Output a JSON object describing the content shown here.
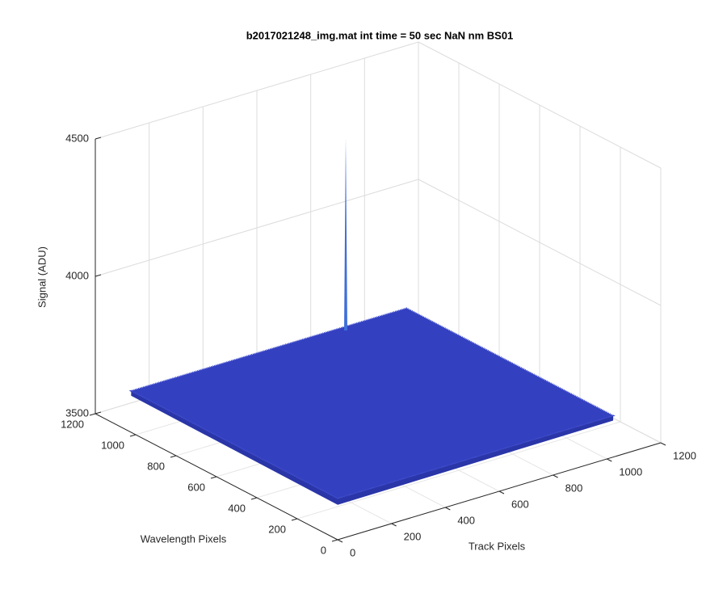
{
  "chart_data": {
    "type": "surface",
    "title": "b2017021248_img.mat int time = 50 sec  NaN nm BS01",
    "xlabel": "Track Pixels",
    "ylabel": "Wavelength Pixels",
    "zlabel": "Signal (ADU)",
    "xlim": [
      0,
      1200
    ],
    "xticks": [
      0,
      200,
      400,
      600,
      800,
      1000,
      1200
    ],
    "ylim": [
      0,
      1200
    ],
    "yticks": [
      0,
      200,
      400,
      600,
      800,
      1000,
      1200
    ],
    "zlim": [
      3500,
      4500
    ],
    "zticks": [
      3500,
      4000,
      4500
    ],
    "grid": true,
    "surface": {
      "x": [
        1,
        1024
      ],
      "y": [
        1,
        1024
      ],
      "z": [
        [
          3650,
          3650
        ],
        [
          3650,
          3650
        ]
      ],
      "color": "#3340c0"
    },
    "peak": {
      "x": 780,
      "y": 1000,
      "z": 4350,
      "color": "#3f6fd8"
    }
  }
}
